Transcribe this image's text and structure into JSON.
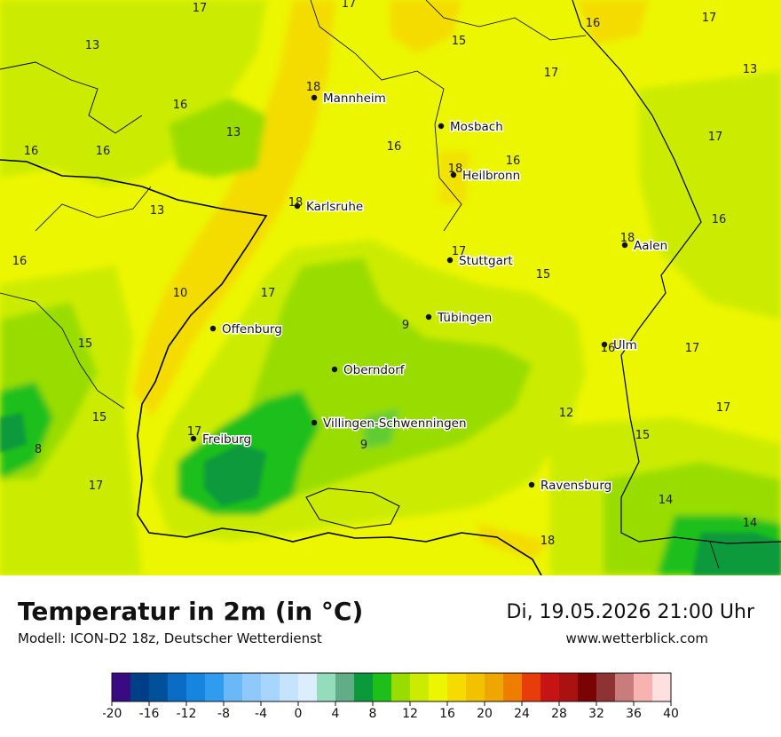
{
  "header": {
    "title": "Temperatur in 2m (in °C)",
    "model": "Modell: ICON-D2 18z, Deutscher Wetterdienst",
    "datetime": "Di, 19.05.2026 21:00 Uhr",
    "website": "www.wetterblick.com"
  },
  "cities": [
    {
      "name": "Mannheim"
    },
    {
      "name": "Mosbach"
    },
    {
      "name": "Heilbronn"
    },
    {
      "name": "Karlsruhe"
    },
    {
      "name": "Stuttgart"
    },
    {
      "name": "Aalen"
    },
    {
      "name": "Tübingen"
    },
    {
      "name": "Offenburg"
    },
    {
      "name": "Ulm"
    },
    {
      "name": "Oberndorf"
    },
    {
      "name": "Villingen-Schwenningen"
    },
    {
      "name": "Freiburg"
    },
    {
      "name": "Ravensburg"
    }
  ],
  "temperature_labels": [
    "17",
    "17",
    "16",
    "17",
    "13",
    "15",
    "13",
    "17",
    "16",
    "13",
    "16",
    "16",
    "16",
    "17",
    "18",
    "16",
    "13",
    "18",
    "18",
    "16",
    "17",
    "16",
    "18",
    "10",
    "17",
    "15",
    "9",
    "15",
    "16",
    "17",
    "15",
    "12",
    "17",
    "8",
    "15",
    "9",
    "17",
    "17",
    "18",
    "14",
    "14"
  ],
  "legend": {
    "ticks": [
      "-20",
      "-16",
      "-12",
      "-8",
      "-4",
      "0",
      "4",
      "8",
      "12",
      "16",
      "20",
      "24",
      "28",
      "32",
      "36",
      "40"
    ],
    "colors": [
      "#3a0a82",
      "#003f88",
      "#00519a",
      "#0a6cc4",
      "#1685e0",
      "#2f9cf0",
      "#6ab8f8",
      "#8fc9fb",
      "#a8d5fc",
      "#c6e3fd",
      "#dcedfe",
      "#95dcbd",
      "#60ad88",
      "#0a9a3c",
      "#1fbf1a",
      "#99dd00",
      "#cbec00",
      "#ecf600",
      "#f4dc00",
      "#f2c200",
      "#f0a600",
      "#ef7d00",
      "#e83c0a",
      "#c61414",
      "#aa1212",
      "#7a0303",
      "#8e3234",
      "#c87d7c",
      "#f8b2b0",
      "#ffe0e0"
    ]
  }
}
